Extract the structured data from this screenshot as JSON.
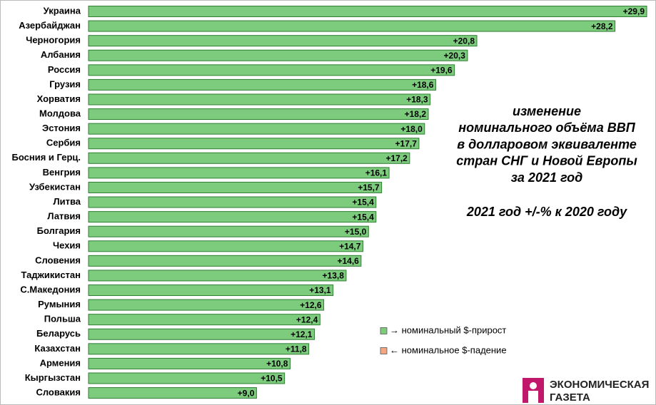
{
  "chart_data": {
    "type": "hbar",
    "title": [
      "изменение",
      "номинального объёма ВВП",
      "в долларовом эквиваленте",
      "стран СНГ и Новой Европы",
      "за 2021 год"
    ],
    "subtitle": "2021 год  +/-% к 2020 году",
    "categories": [
      "Украина",
      "Азербайджан",
      "Черногория",
      "Албания",
      "Россия",
      "Грузия",
      "Хорватия",
      "Молдова",
      "Эстония",
      "Сербия",
      "Босния и Герц.",
      "Венгрия",
      "Узбекистан",
      "Литва",
      "Латвия",
      "Болгария",
      "Чехия",
      "Словения",
      "Таджикистан",
      "С.Македония",
      "Румыния",
      "Польша",
      "Беларусь",
      "Казахстан",
      "Армения",
      "Кыргызстан",
      "Словакия"
    ],
    "values": [
      29.9,
      28.2,
      20.8,
      20.3,
      19.6,
      18.6,
      18.3,
      18.2,
      18.0,
      17.7,
      17.2,
      16.1,
      15.7,
      15.4,
      15.4,
      15.0,
      14.7,
      14.6,
      13.8,
      13.1,
      12.6,
      12.4,
      12.1,
      11.8,
      10.8,
      10.5,
      9.0
    ],
    "value_labels": [
      "+29,9",
      "+28,2",
      "+20,8",
      "+20,3",
      "+19,6",
      "+18,6",
      "+18,3",
      "+18,2",
      "+18,0",
      "+17,7",
      "+17,2",
      "+16,1",
      "+15,7",
      "+15,4",
      "+15,4",
      "+15,0",
      "+14,7",
      "+14,6",
      "+13,8",
      "+13,1",
      "+12,6",
      "+12,4",
      "+12,1",
      "+11,8",
      "+10,8",
      "+10,5",
      "+9,0"
    ],
    "color": "#7dcc7d",
    "legend": [
      {
        "name": "→ номинальный $-прирост",
        "color": "#7dcc7d"
      },
      {
        "name": "← номинальное $-падение",
        "color": "#f4a582"
      }
    ],
    "logo": [
      "ЭКОНОМИЧЕСКАЯ",
      "ГАЗЕТА"
    ]
  }
}
